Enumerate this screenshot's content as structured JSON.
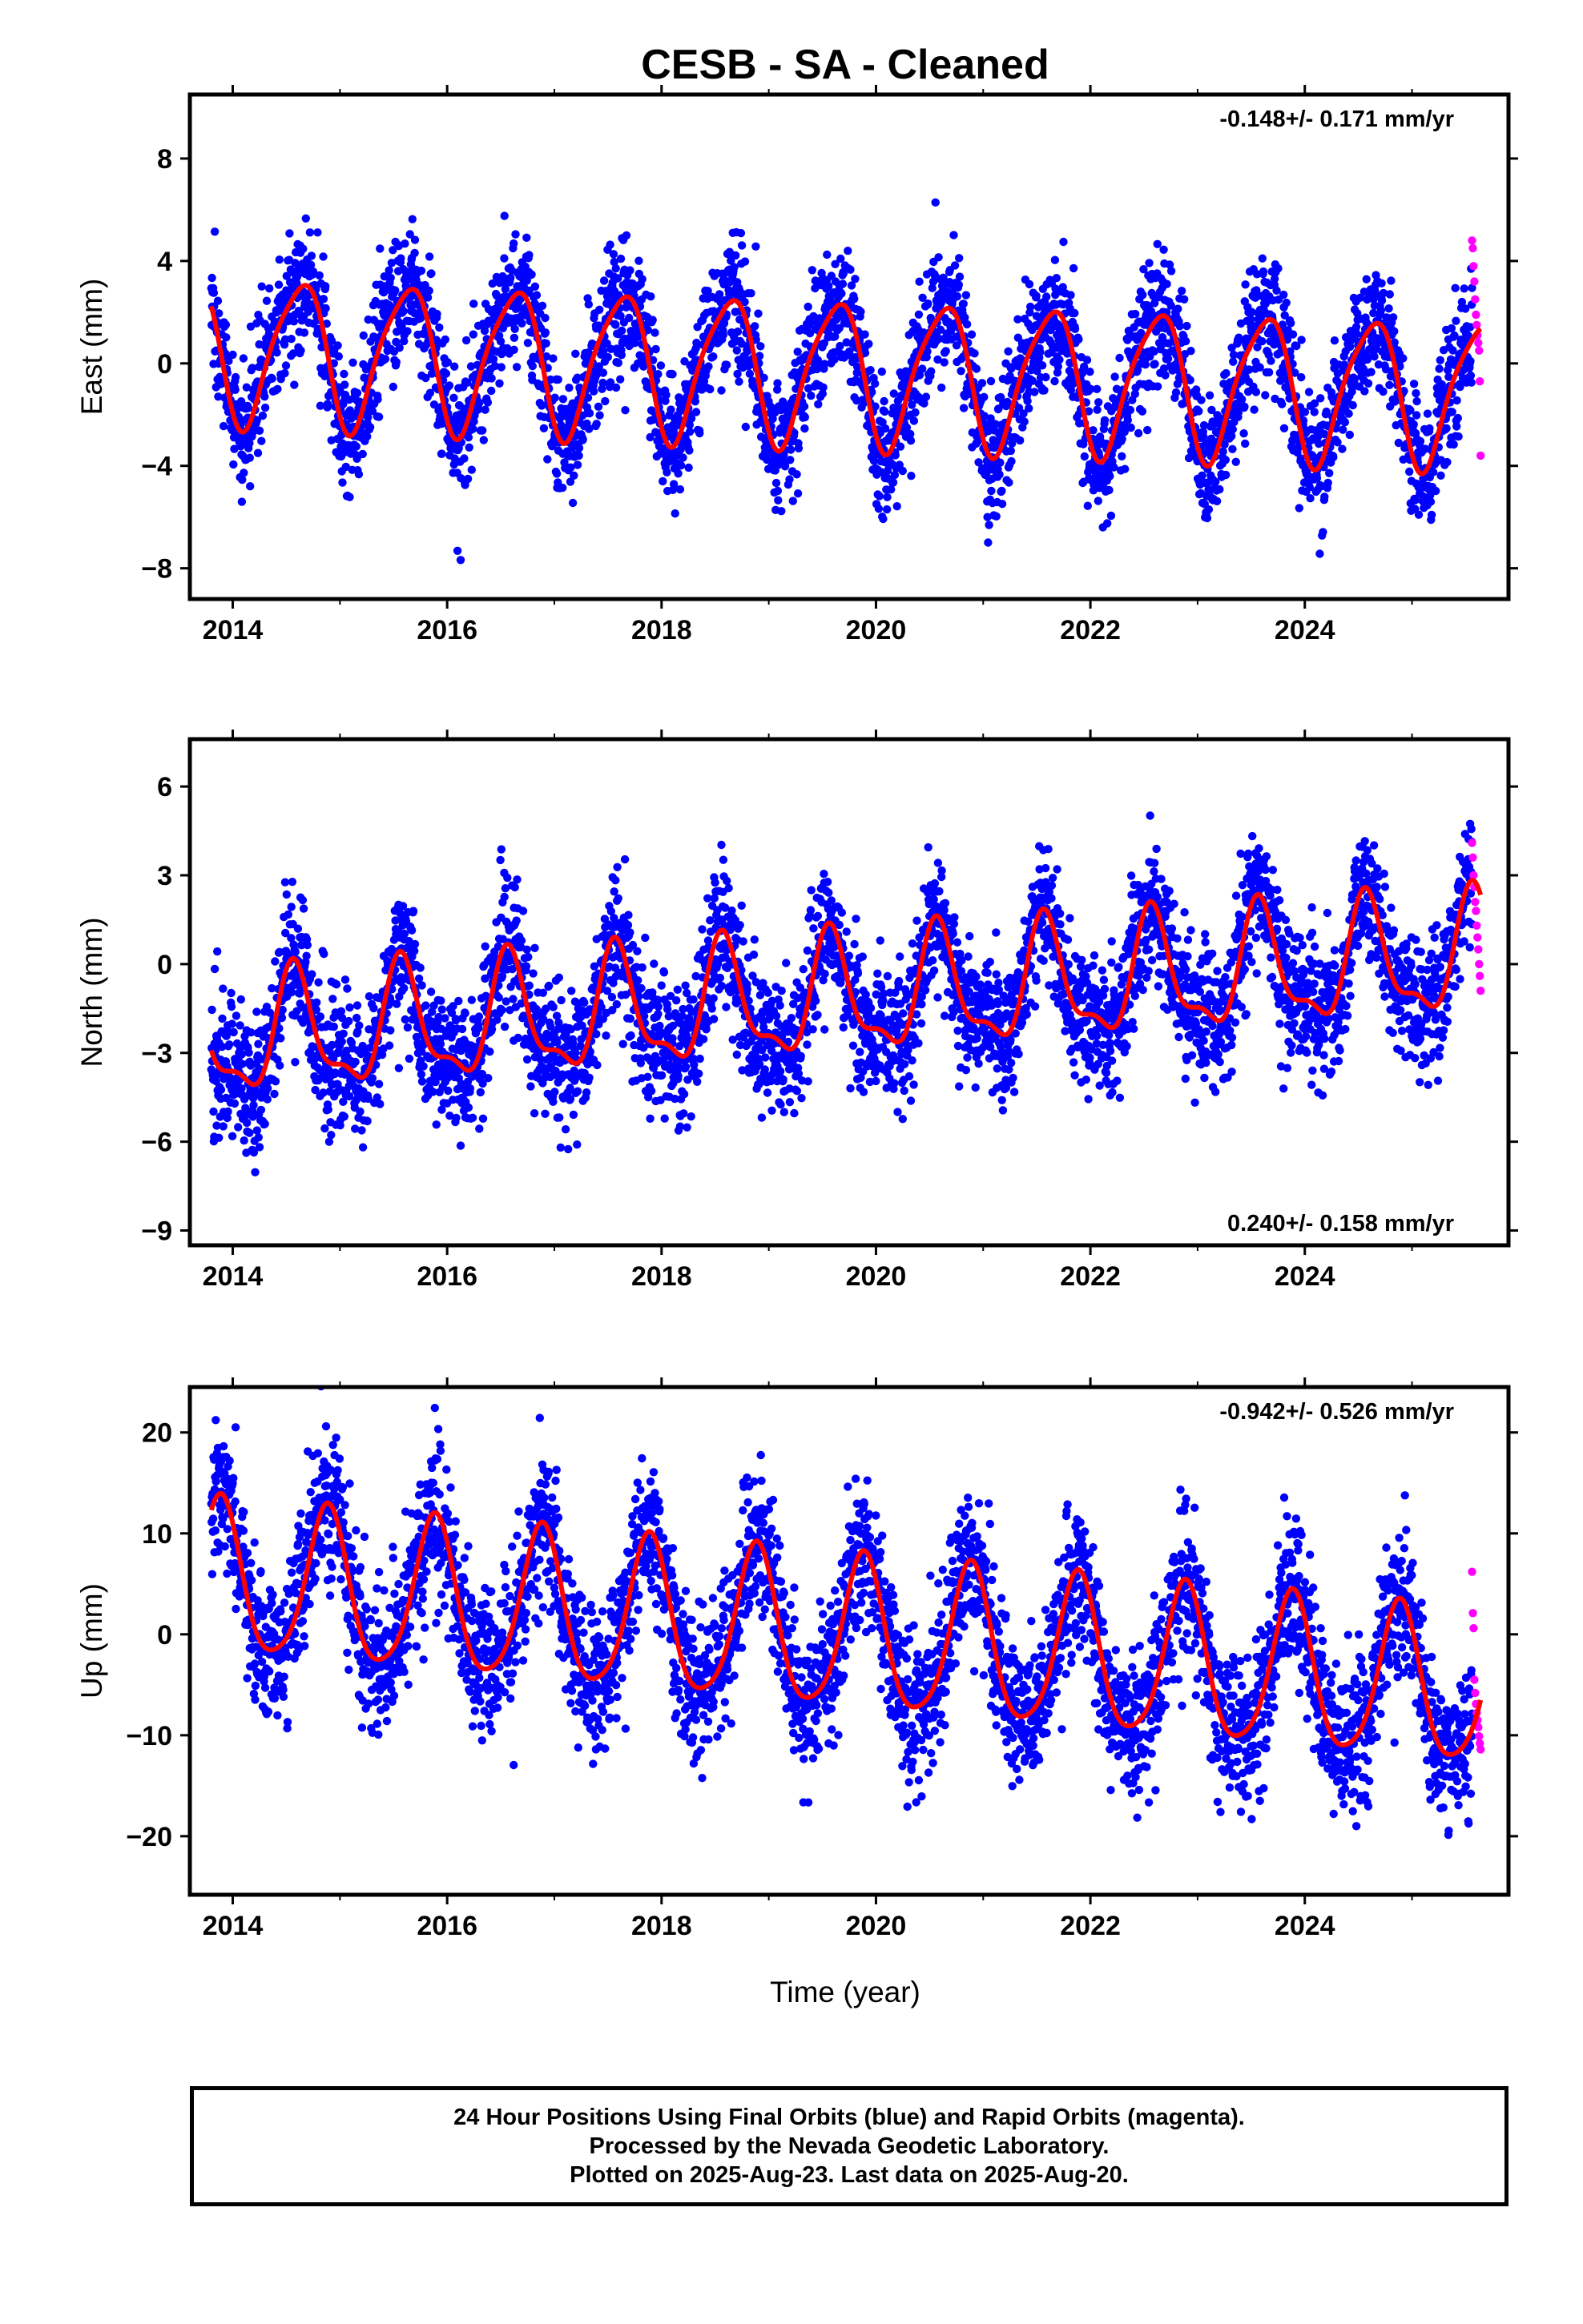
{
  "title": "CESB  - SA - Cleaned",
  "xlabel": "Time (year)",
  "footer": {
    "line1": "24 Hour Positions Using Final Orbits (blue) and Rapid Orbits (magenta).",
    "line2": "Processed by the Nevada Geodetic Laboratory.",
    "line3": "Plotted on 2025-Aug-23. Last data on 2025-Aug-20."
  },
  "colors": {
    "final": "#0000ff",
    "rapid": "#ff00ff",
    "model": "#ff0000",
    "frame": "#000000"
  },
  "chart_data": [
    {
      "type": "scatter",
      "component": "East",
      "ylabel": "East (mm)",
      "rate": "-0.148+/- 0.171 mm/yr",
      "rate_position": "top-right",
      "xlim": [
        2013.6,
        2025.9
      ],
      "ylim": [
        -9.2,
        10.5
      ],
      "xticks": [
        2014,
        2016,
        2018,
        2020,
        2022,
        2024
      ],
      "yticks": [
        -8,
        -4,
        0,
        4,
        8
      ],
      "series": [
        {
          "kind": "final-orbits",
          "x_range": [
            2013.8,
            2025.56
          ],
          "offset": -0.3,
          "trend": -0.148,
          "annual_amp": 2.8,
          "annual_phase_peak": 0.62,
          "semi_amp": 0.5,
          "semi_phase": 0.3,
          "noise": 1.25,
          "samples": 4000
        },
        {
          "kind": "rapid-orbits",
          "x_range": [
            2025.56,
            2025.64
          ],
          "values": [
            4.8,
            4.5,
            3.8,
            3.2,
            2.5,
            1.9,
            1.5,
            1.1,
            0.8,
            0.5,
            -0.7,
            -3.6
          ]
        },
        {
          "kind": "model",
          "x_range": [
            2013.8,
            2025.64
          ]
        }
      ]
    },
    {
      "type": "scatter",
      "component": "North",
      "ylabel": "North (mm)",
      "rate": "0.240+/- 0.158 mm/yr",
      "rate_position": "bottom-right",
      "xlim": [
        2013.6,
        2025.9
      ],
      "ylim": [
        -9.5,
        7.6
      ],
      "xticks": [
        2014,
        2016,
        2018,
        2020,
        2022,
        2024
      ],
      "yticks": [
        -9,
        -6,
        -3,
        0,
        3,
        6
      ],
      "series": [
        {
          "kind": "final-orbits",
          "x_range": [
            2013.8,
            2025.56
          ],
          "offset": -1.2,
          "trend": 0.24,
          "annual_amp": 1.9,
          "annual_phase_peak": 0.58,
          "semi_amp": 0.7,
          "semi_phase": 0.05,
          "noise": 1.15,
          "samples": 4000
        },
        {
          "kind": "rapid-orbits",
          "x_range": [
            2025.56,
            2025.64
          ],
          "values": [
            4.1,
            3.6,
            3.0,
            2.6,
            2.1,
            1.8,
            1.3,
            0.9,
            0.5,
            0.0,
            -0.4,
            -0.9
          ]
        },
        {
          "kind": "model",
          "x_range": [
            2013.8,
            2025.64
          ]
        }
      ]
    },
    {
      "type": "scatter",
      "component": "Up",
      "ylabel": "Up (mm)",
      "rate": "-0.942+/- 0.526 mm/yr",
      "rate_position": "top-right",
      "xlim": [
        2013.6,
        2025.9
      ],
      "ylim": [
        -25.8,
        24.5
      ],
      "xticks": [
        2014,
        2016,
        2018,
        2020,
        2022,
        2024
      ],
      "yticks": [
        -20,
        -10,
        0,
        10,
        20
      ],
      "series": [
        {
          "kind": "final-orbits",
          "x_range": [
            2013.8,
            2025.56
          ],
          "offset": 0.0,
          "trend": -0.942,
          "annual_amp": 7.5,
          "annual_phase_peak": 0.88,
          "semi_amp": 1.2,
          "semi_phase": 0.4,
          "noise": 3.6,
          "samples": 4000
        },
        {
          "kind": "rapid-orbits",
          "x_range": [
            2025.56,
            2025.64
          ],
          "values": [
            6.2,
            2.1,
            0.6,
            -4.5,
            -5.8,
            -6.9,
            -7.8,
            -8.5,
            -9.2,
            -10.1,
            -10.8,
            -11.4
          ]
        },
        {
          "kind": "model",
          "x_range": [
            2013.8,
            2025.64
          ]
        }
      ]
    }
  ]
}
